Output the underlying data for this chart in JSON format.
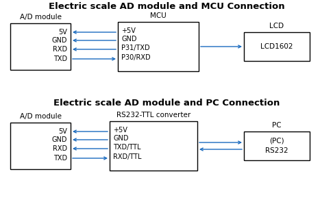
{
  "title1": "Electric scale AD module and MCU Connection",
  "title2": "Electric scale AD module and PC Connection",
  "bg_color": "#ffffff",
  "box_edge_color": "#000000",
  "arrow_color": "#1a6bbf",
  "text_color": "#000000",
  "label_color": "#000000",
  "top_diagram": {
    "ad_label": "A/D module",
    "mid_label": "MCU",
    "right_label": "LCD",
    "ad_pins": [
      "5V",
      "GND",
      "RXD",
      "TXD"
    ],
    "mid_pins": [
      "+5V",
      "GND",
      "P31/TXD",
      "P30/RXD"
    ],
    "right_text": "LCD1602"
  },
  "bottom_diagram": {
    "ad_label": "A/D module",
    "mid_label": "RS232-TTL converter",
    "right_label": "PC",
    "ad_pins": [
      "5V",
      "GND",
      "RXD",
      "TXD"
    ],
    "mid_pins": [
      "+5V",
      "GND",
      "TXD/TTL",
      "RXD/TTL"
    ],
    "right_text": "(PC)\nRS232"
  },
  "figsize": [
    4.86,
    2.92
  ],
  "dpi": 100
}
